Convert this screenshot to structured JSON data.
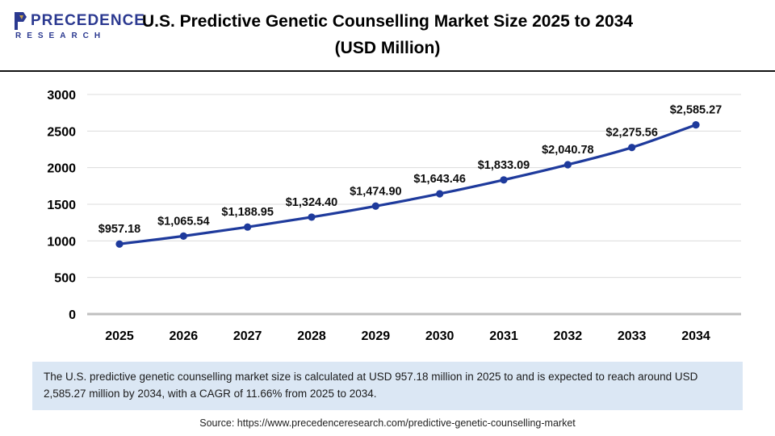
{
  "header": {
    "logo_name": "PRECEDENCE",
    "logo_subname": "RESEARCH",
    "title_line1": "U.S. Predictive Genetic Counselling Market Size 2025 to 2034",
    "title_line2": "(USD Million)"
  },
  "chart_data": {
    "type": "line",
    "title": "U.S. Predictive Genetic Counselling Market Size 2025 to 2034 (USD Million)",
    "categories": [
      "2025",
      "2026",
      "2027",
      "2028",
      "2029",
      "2030",
      "2031",
      "2032",
      "2033",
      "2034"
    ],
    "values": [
      957.18,
      1065.54,
      1188.95,
      1324.4,
      1474.9,
      1643.46,
      1833.09,
      2040.78,
      2275.56,
      2585.27
    ],
    "point_labels": [
      "$957.18",
      "$1,065.54",
      "$1,188.95",
      "$1,324.40",
      "$1,474.90",
      "$1,643.46",
      "$1,833.09",
      "$2,040.78",
      "$2,275.56",
      "$2,585.27"
    ],
    "xlabel": "",
    "ylabel": "",
    "ylim": [
      0,
      3000
    ],
    "yticks": [
      0,
      500,
      1000,
      1500,
      2000,
      2500,
      3000
    ],
    "grid": true,
    "legend_position": "none",
    "line_color": "#1e3a9c",
    "gridline_color": "#dcdcdc",
    "axis_line_color": "#bfbfbf"
  },
  "note": {
    "text": "The U.S. predictive genetic counselling market size is calculated at USD 957.18 million in 2025 to and is expected to reach around USD 2,585.27 million by 2034, with a CAGR of 11.66% from 2025 to 2034."
  },
  "source": {
    "text": "Source: https://www.precedenceresearch.com/predictive-genetic-counselling-market"
  }
}
